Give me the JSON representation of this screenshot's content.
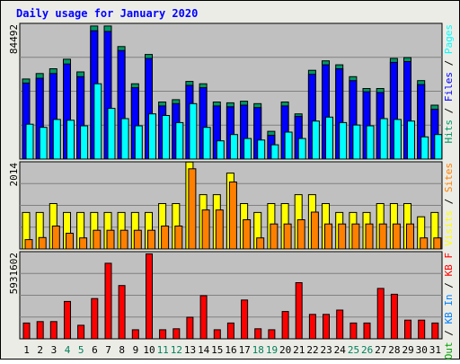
{
  "title": "Daily usage for January 2020",
  "colors": {
    "background": "#ecece6",
    "panel": "#c0c0c0",
    "title": "#0000ff",
    "weekday_label": "#000000",
    "weekend_label": "#00805c",
    "hits_front": "#00805c",
    "hits": "#009966",
    "files": "#0000ff",
    "pages": "#00ffff",
    "visits": "#ffff00",
    "sites": "#ff8000",
    "kbf": "#ff0000",
    "kbin": "#0080ff",
    "kbout": "#00a000"
  },
  "legends": {
    "top": [
      {
        "text": "Hits",
        "color": "#009966"
      },
      {
        "text": " / ",
        "color": "#000000"
      },
      {
        "text": "Files",
        "color": "#0000ff"
      },
      {
        "text": " / ",
        "color": "#000000"
      },
      {
        "text": "Pages",
        "color": "#00ffff"
      }
    ],
    "middle": [
      {
        "text": "Visits",
        "color": "#ffff00"
      },
      {
        "text": " / ",
        "color": "#000000"
      },
      {
        "text": "Sites",
        "color": "#ff8000"
      }
    ],
    "bottom": [
      {
        "text": "KB Out",
        "color": "#00a000"
      },
      {
        "text": " / ",
        "color": "#000000"
      },
      {
        "text": "KB In",
        "color": "#0080ff"
      },
      {
        "text": " / ",
        "color": "#000000"
      },
      {
        "text": "KB F",
        "color": "#ff0000"
      }
    ]
  },
  "chart_data": [
    {
      "type": "bar",
      "panel": "hits-files-pages",
      "y_axis_max_label": "84492",
      "ylim": [
        0,
        84492
      ],
      "grid": true,
      "categories": [
        "1",
        "2",
        "3",
        "4",
        "5",
        "6",
        "7",
        "8",
        "9",
        "10",
        "11",
        "12",
        "13",
        "14",
        "15",
        "16",
        "17",
        "18",
        "19",
        "20",
        "21",
        "22",
        "23",
        "24",
        "25",
        "26",
        "27",
        "28",
        "29",
        "30",
        "31"
      ],
      "weekend_days": [
        "4",
        "5",
        "11",
        "12",
        "18",
        "19",
        "25",
        "26"
      ],
      "series": [
        {
          "name": "Hits",
          "values": [
            50500,
            54000,
            57000,
            63000,
            55000,
            84000,
            84000,
            71000,
            47500,
            66000,
            36000,
            37500,
            49000,
            47500,
            36000,
            35500,
            36500,
            35000,
            17500,
            36000,
            28500,
            56000,
            62000,
            59500,
            52000,
            44500,
            44500,
            63500,
            64000,
            49500,
            34000
          ]
        },
        {
          "name": "Files",
          "values": [
            48000,
            51000,
            54000,
            60000,
            52000,
            81000,
            80500,
            68500,
            45000,
            63500,
            33500,
            35000,
            46500,
            45000,
            33500,
            33000,
            34000,
            32500,
            15000,
            33500,
            27000,
            53500,
            59500,
            57000,
            49500,
            42500,
            42000,
            61000,
            61500,
            47000,
            31500
          ]
        },
        {
          "name": "Pages",
          "values": [
            22000,
            20000,
            25000,
            24500,
            21000,
            47500,
            32000,
            25500,
            21000,
            28500,
            27500,
            23000,
            35000,
            20000,
            11500,
            15500,
            13000,
            12000,
            9000,
            17000,
            13000,
            24000,
            26500,
            23000,
            21500,
            21000,
            25500,
            25000,
            24000,
            14000,
            15500
          ]
        }
      ]
    },
    {
      "type": "bar",
      "panel": "visits-sites",
      "y_axis_max_label": "2014",
      "ylim": [
        0,
        2014
      ],
      "grid": true,
      "categories": [
        "1",
        "2",
        "3",
        "4",
        "5",
        "6",
        "7",
        "8",
        "9",
        "10",
        "11",
        "12",
        "13",
        "14",
        "15",
        "16",
        "17",
        "18",
        "19",
        "20",
        "21",
        "22",
        "23",
        "24",
        "25",
        "26",
        "27",
        "28",
        "29",
        "30",
        "31"
      ],
      "series": [
        {
          "name": "Visits",
          "values": [
            860,
            860,
            1070,
            860,
            860,
            860,
            860,
            860,
            860,
            860,
            1070,
            1070,
            2050,
            1280,
            1280,
            1790,
            1070,
            860,
            1070,
            1070,
            1280,
            1280,
            1070,
            860,
            860,
            860,
            1070,
            1070,
            1070,
            760,
            860
          ]
        },
        {
          "name": "Sites",
          "values": [
            220,
            270,
            540,
            370,
            260,
            440,
            440,
            440,
            440,
            440,
            540,
            540,
            1890,
            920,
            920,
            1580,
            690,
            260,
            590,
            590,
            690,
            870,
            590,
            590,
            590,
            590,
            590,
            590,
            590,
            260,
            260
          ]
        }
      ]
    },
    {
      "type": "bar",
      "panel": "kbytes",
      "y_axis_max_label": "5931602",
      "ylim": [
        0,
        5931602
      ],
      "grid": true,
      "categories": [
        "1",
        "2",
        "3",
        "4",
        "5",
        "6",
        "7",
        "8",
        "9",
        "10",
        "11",
        "12",
        "13",
        "14",
        "15",
        "16",
        "17",
        "18",
        "19",
        "20",
        "21",
        "22",
        "23",
        "24",
        "25",
        "26",
        "27",
        "28",
        "29",
        "30",
        "31"
      ],
      "series": [
        {
          "name": "KB F",
          "values": [
            1100000,
            1200000,
            1200000,
            2600000,
            940000,
            2800000,
            5250000,
            3700000,
            630000,
            5900000,
            630000,
            700000,
            1500000,
            3000000,
            630000,
            1100000,
            2700000,
            700000,
            630000,
            1900000,
            3900000,
            1700000,
            1700000,
            2000000,
            1100000,
            1100000,
            3500000,
            3100000,
            1300000,
            1300000,
            1100000
          ]
        },
        {
          "name": "KB In",
          "values": [
            0,
            0,
            0,
            0,
            0,
            0,
            0,
            0,
            0,
            0,
            0,
            0,
            0,
            0,
            0,
            0,
            0,
            0,
            0,
            0,
            0,
            0,
            0,
            0,
            0,
            0,
            0,
            0,
            0,
            0,
            0
          ]
        },
        {
          "name": "KB Out",
          "values": [
            0,
            0,
            0,
            0,
            0,
            0,
            0,
            0,
            0,
            0,
            0,
            0,
            0,
            0,
            0,
            0,
            0,
            0,
            0,
            0,
            0,
            0,
            0,
            0,
            0,
            0,
            0,
            0,
            0,
            0,
            0
          ]
        }
      ]
    }
  ]
}
